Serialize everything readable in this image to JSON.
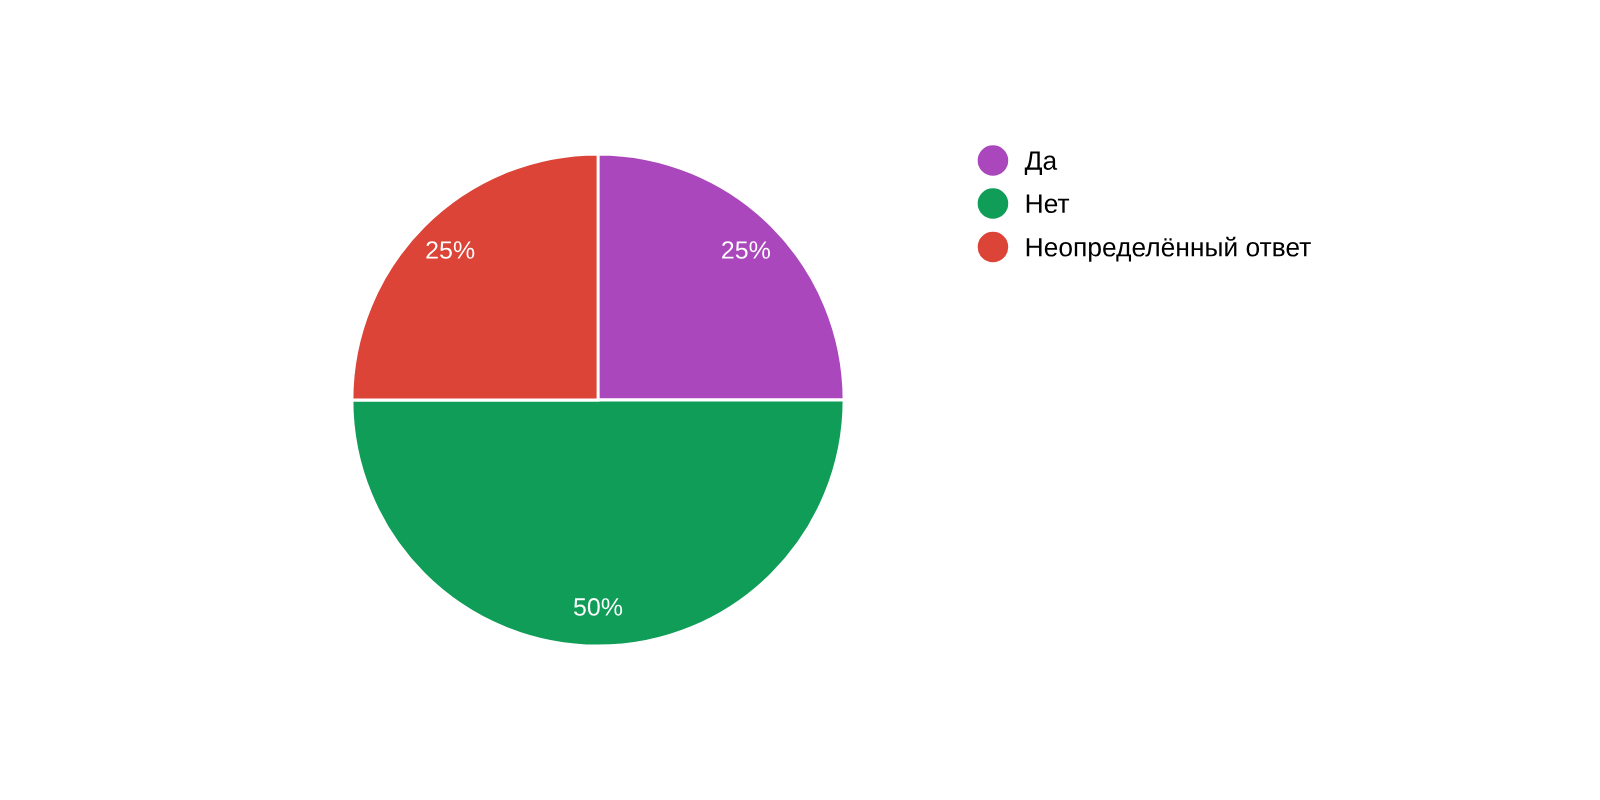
{
  "chart_data": {
    "type": "pie",
    "categories": [
      "Да",
      "Нет",
      "Неопределённый ответ"
    ],
    "values": [
      25,
      50,
      25
    ],
    "colors": [
      "#ab47bc",
      "#0f9d58",
      "#db4437"
    ],
    "value_labels": [
      "25%",
      "50%",
      "25%"
    ],
    "legend": "right"
  }
}
